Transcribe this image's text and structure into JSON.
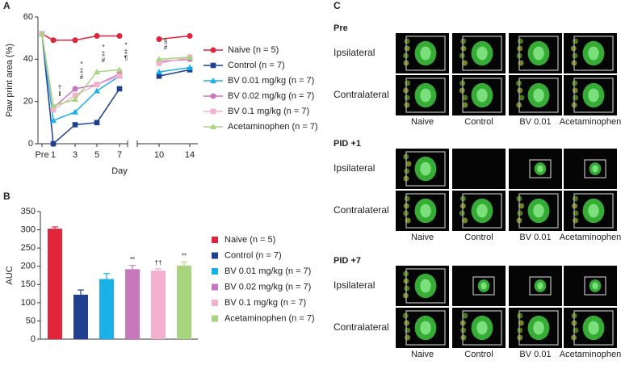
{
  "chart_data": [
    {
      "panel": "A",
      "type": "line",
      "categories": [
        "Pre",
        "1",
        "3",
        "5",
        "7",
        "10",
        "14"
      ],
      "x_label": "Day",
      "y_label": "Paw print area (%)",
      "ylim": [
        0,
        60
      ],
      "yticks": [
        0,
        20,
        40,
        60
      ],
      "series": [
        {
          "name": "Naive (n = 5)",
          "color": "#e0243a",
          "marker": "circle",
          "values": [
            52,
            49,
            49,
            51,
            51,
            49.5,
            51
          ]
        },
        {
          "name": "Control (n = 7)",
          "color": "#1f3f8f",
          "marker": "square",
          "values": [
            52,
            0,
            9,
            10,
            26,
            32,
            35
          ]
        },
        {
          "name": "BV 0.01 mg/kg (n = 7)",
          "color": "#1ab0e8",
          "marker": "triangle",
          "values": [
            52,
            11,
            15,
            25,
            32,
            34,
            36
          ]
        },
        {
          "name": "BV 0.02 mg/kg (n = 7)",
          "color": "#c678be",
          "marker": "circle",
          "values": [
            52,
            17,
            26,
            28,
            33,
            39,
            40
          ]
        },
        {
          "name": "BV 0.1 mg/kg (n = 7)",
          "color": "#f5b0cf",
          "marker": "square",
          "values": [
            52,
            16,
            23,
            28,
            32,
            38,
            41
          ]
        },
        {
          "name": "Acetaminophen (n = 7)",
          "color": "#a8d47f",
          "marker": "triangle",
          "values": [
            52,
            18,
            21,
            34,
            35,
            40,
            41
          ]
        }
      ],
      "annotations": [
        {
          "x": "1",
          "lines": [
            "†",
            "‖"
          ]
        },
        {
          "x": "3",
          "lines": [
            "*",
            "‡",
            "#"
          ]
        },
        {
          "x": "5",
          "lines": [
            "*",
            "‡",
            "#"
          ]
        },
        {
          "x": "7",
          "lines": [
            "*",
            "‡",
            "¶"
          ]
        },
        {
          "x": "10",
          "lines": [
            "§",
            "#"
          ]
        }
      ]
    },
    {
      "panel": "B",
      "type": "bar",
      "y_label": "AUC",
      "ylim": [
        0,
        350
      ],
      "yticks": [
        0,
        50,
        100,
        150,
        200,
        250,
        300,
        350
      ],
      "categories": [
        "Naive (n = 5)",
        "Control (n = 7)",
        "BV 0.01 mg/kg (n = 7)",
        "BV 0.02 mg/kg (n = 7)",
        "BV 0.1 mg/kg (n = 7)",
        "Acetaminophen (n = 7)"
      ],
      "colors": [
        "#e0243a",
        "#1f3f8f",
        "#1ab0e8",
        "#c678be",
        "#f5b0cf",
        "#a8d47f"
      ],
      "values": [
        303,
        122,
        165,
        192,
        188,
        202
      ],
      "errors": [
        5,
        13,
        15,
        10,
        5,
        10
      ],
      "significance": [
        null,
        null,
        null,
        "**",
        "††",
        "**"
      ]
    }
  ],
  "panel_c": {
    "label": "C",
    "columns": [
      "Naive",
      "Control",
      "BV 0.01",
      "Acetaminophen"
    ],
    "rows": [
      "Ipsilateral",
      "Contralateral"
    ],
    "sections": [
      "Pre",
      "PID +1",
      "PID +7"
    ]
  }
}
